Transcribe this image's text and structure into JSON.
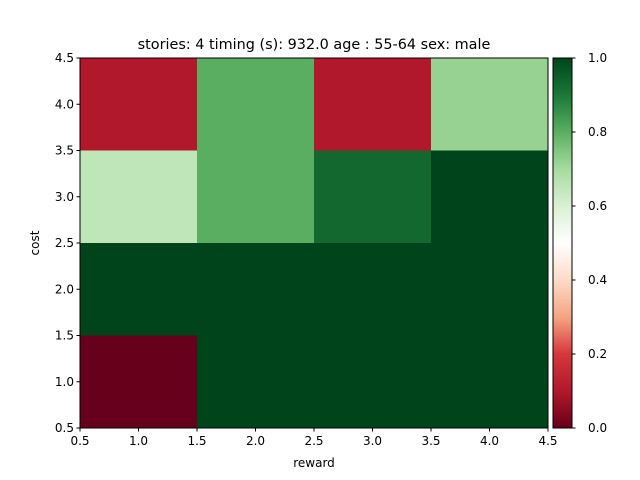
{
  "chart_data": {
    "type": "heatmap",
    "title": "stories: 4 timing (s): 932.0 age : 55-64 sex: male",
    "xlabel": "reward",
    "ylabel": "cost",
    "x_categories": [
      1,
      2,
      3,
      4
    ],
    "y_categories": [
      1,
      2,
      3,
      4
    ],
    "xlim": [
      0.5,
      4.5
    ],
    "ylim": [
      0.5,
      4.5
    ],
    "x_ticks": [
      "0.5",
      "1.0",
      "1.5",
      "2.0",
      "2.5",
      "3.0",
      "3.5",
      "4.0",
      "4.5"
    ],
    "y_ticks": [
      "0.5",
      "1.0",
      "1.5",
      "2.0",
      "2.5",
      "3.0",
      "3.5",
      "4.0",
      "4.5"
    ],
    "values": [
      [
        0.0,
        1.0,
        1.0,
        1.0
      ],
      [
        1.0,
        1.0,
        1.0,
        1.0
      ],
      [
        0.65,
        0.8,
        0.93,
        1.0
      ],
      [
        0.1,
        0.8,
        0.1,
        0.72
      ]
    ],
    "value_range": [
      0.0,
      1.0
    ],
    "colormap": "RdYlGn-like (dark red → white → dark green)",
    "colorbar_ticks": [
      "0.0",
      "0.2",
      "0.4",
      "0.6",
      "0.8",
      "1.0"
    ],
    "grid": false
  }
}
